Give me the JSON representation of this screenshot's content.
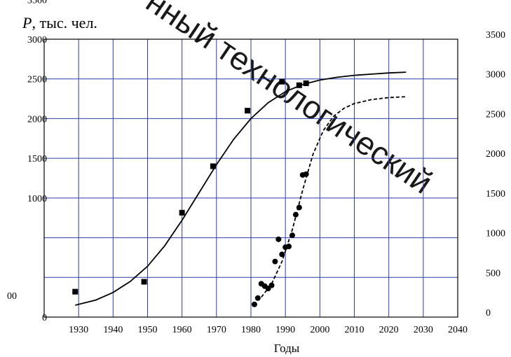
{
  "chart_data": {
    "type": "scatter",
    "title": "",
    "ylabel": {
      "italic": "P",
      "rest": ", тыс. чел."
    },
    "xlabel": "Годы",
    "xlim": [
      1920,
      2040
    ],
    "ylim": [
      0,
      3500
    ],
    "x_ticks": [
      "1930",
      "1940",
      "1950",
      "1960",
      "1970",
      "1980",
      "1990",
      "2000",
      "2010",
      "2020",
      "2030",
      "2040"
    ],
    "y_ticks_left": [
      "0",
      "",
      "",
      "1000",
      "1500",
      "2000",
      "2500",
      "3000",
      "3500"
    ],
    "y_ticks_right": [
      "0",
      "500",
      "1000",
      "1500",
      "2000",
      "2500",
      "3000",
      "3500"
    ],
    "stray_label": "00",
    "grid": true,
    "series": [
      {
        "marker": "square",
        "points": [
          [
            1929,
            320
          ],
          [
            1949,
            445
          ],
          [
            1960,
            1315
          ],
          [
            1969,
            1900
          ],
          [
            1979,
            2600
          ],
          [
            1989,
            2965
          ],
          [
            1994,
            2920
          ],
          [
            1996,
            2945
          ]
        ]
      },
      {
        "line": "solid",
        "points": [
          [
            1929,
            150
          ],
          [
            1935,
            215
          ],
          [
            1940,
            310
          ],
          [
            1945,
            450
          ],
          [
            1950,
            640
          ],
          [
            1955,
            900
          ],
          [
            1960,
            1220
          ],
          [
            1965,
            1570
          ],
          [
            1970,
            1920
          ],
          [
            1975,
            2240
          ],
          [
            1980,
            2500
          ],
          [
            1985,
            2700
          ],
          [
            1990,
            2840
          ],
          [
            1995,
            2930
          ],
          [
            2000,
            2985
          ],
          [
            2005,
            3020
          ],
          [
            2010,
            3045
          ],
          [
            2015,
            3060
          ],
          [
            2020,
            3075
          ],
          [
            2025,
            3085
          ]
        ]
      },
      {
        "marker": "circle",
        "points": [
          [
            1981,
            160
          ],
          [
            1982,
            240
          ],
          [
            1983,
            420
          ],
          [
            1984,
            390
          ],
          [
            1985,
            360
          ],
          [
            1986,
            400
          ],
          [
            1987,
            700
          ],
          [
            1988,
            980
          ],
          [
            1989,
            790
          ],
          [
            1990,
            880
          ],
          [
            1991,
            890
          ],
          [
            1992,
            1030
          ],
          [
            1993,
            1290
          ],
          [
            1994,
            1380
          ],
          [
            1995,
            1790
          ],
          [
            1996,
            1800
          ]
        ]
      },
      {
        "line": "dashed",
        "points": [
          [
            1983,
            250
          ],
          [
            1986,
            420
          ],
          [
            1989,
            700
          ],
          [
            1992,
            1100
          ],
          [
            1995,
            1600
          ],
          [
            1998,
            2050
          ],
          [
            2001,
            2350
          ],
          [
            2004,
            2530
          ],
          [
            2007,
            2630
          ],
          [
            2010,
            2690
          ],
          [
            2015,
            2740
          ],
          [
            2020,
            2765
          ],
          [
            2025,
            2775
          ]
        ]
      }
    ],
    "watermark": "нный технологический"
  }
}
